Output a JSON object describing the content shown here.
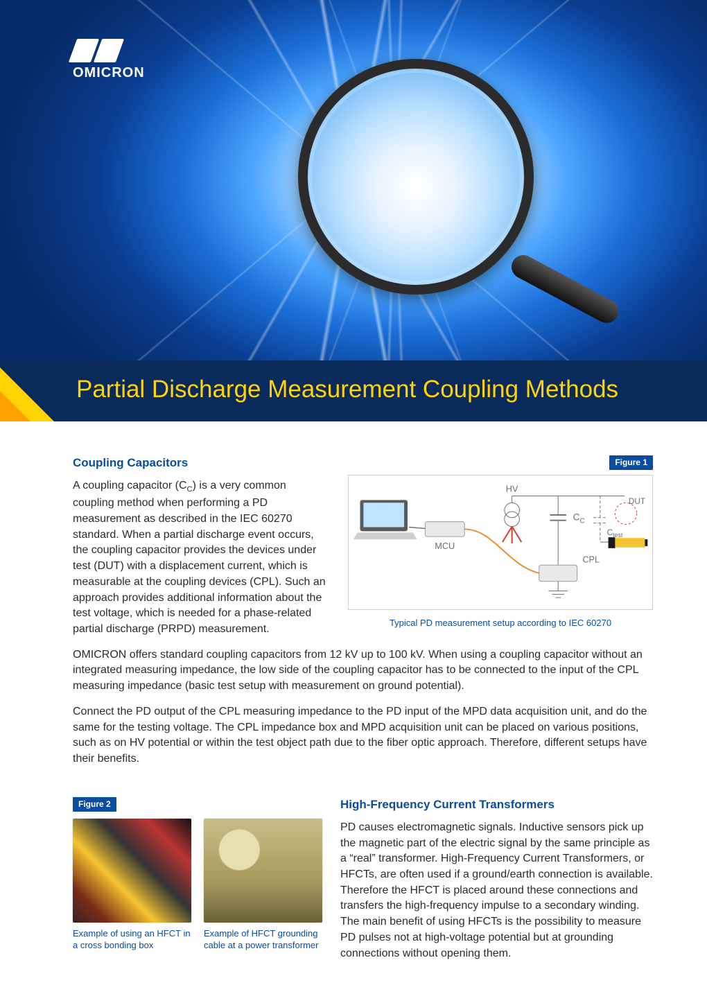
{
  "brand": {
    "name": "OMICRON"
  },
  "title": "Partial Discharge Measurement Coupling Methods",
  "colors": {
    "brand_blue": "#0a4da0",
    "title_bg": "#0a2a5c",
    "title_text": "#ffd400",
    "accent_orange": "#ffa000",
    "body_text": "#2b2b2b",
    "figure_border": "#cfcfcf",
    "hero_gradient_inner": "#ffffff",
    "hero_gradient_outer": "#062a66"
  },
  "section1": {
    "heading": "Coupling Capacitors",
    "para1_html": "A coupling capacitor (C<sub>C</sub>) is a very common coupling method when performing a PD measurement as described in the IEC 60270 standard. When a partial discharge event occurs, the coupling capacitor provides the devices under test (DUT) with a displacement current, which is measurable at the coupling devices (CPL). Such an approach provides additional information about the test voltage, which is needed for a phase-related partial discharge (PRPD) measurement.",
    "para2": "OMICRON offers standard coupling capacitors from 12 kV up to 100 kV. When using a coupling capacitor without an integrated measuring impedance, the low side of the coupling capacitor has to be connected to the input of the CPL measuring impedance (basic test setup with measurement on ground potential).",
    "para3": "Connect the PD output of the CPL measuring impedance to the PD input of the MPD data acquisition unit, and do the same for the testing voltage. The CPL impedance box and MPD acquisition unit can be placed on various positions, such as on HV potential or within the test object path due to the fiber optic approach. Therefore, different setups have their benefits."
  },
  "figure1": {
    "badge": "Figure 1",
    "caption": "Typical PD measurement setup according to IEC 60270",
    "labels": {
      "hv": "HV",
      "mcu": "MCU",
      "cc": "C",
      "cc_sub": "C",
      "cpl": "CPL",
      "dut": "DUT",
      "ctest": "C",
      "ctest_sub": "test"
    },
    "style": {
      "wire_color": "#6f6f6f",
      "label_color": "#6f6f6f",
      "accent_red": "#d83a2b",
      "dut_yellow": "#f4c430",
      "dut_black": "#1a1a1a",
      "laptop_screen": "#bfe4ff",
      "box_fill": "#e9e9e9"
    }
  },
  "section2": {
    "heading": "High-Frequency Current Transformers",
    "para": "PD causes electromagnetic signals. Inductive sensors pick up the magnetic part of the electric signal by the same principle as a “real” transformer. High-Frequency Current Transformers, or HFCTs, are often used if a ground/earth connection is available. Therefore the HFCT is placed around these connections and transfers the high-frequency impulse to a secondary winding. The main benefit of using HFCTs is the possibility to measure PD pulses not at high-voltage potential but at grounding connections without opening them."
  },
  "figure2": {
    "badge": "Figure 2",
    "caption_a": "Example of using an HFCT in a cross bonding box",
    "caption_b": "Example of HFCT grounding cable at a power transformer"
  }
}
